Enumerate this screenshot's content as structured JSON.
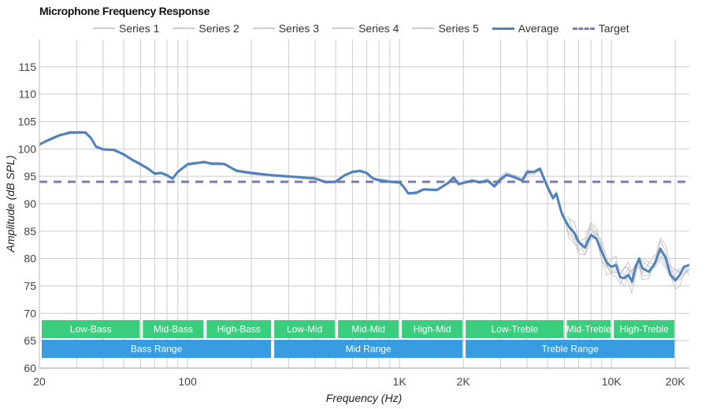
{
  "chart_data": {
    "type": "line",
    "title": "Microphone Frequency Response",
    "xlabel": "Frequency (Hz)",
    "ylabel": "Amplitude (dB SPL)",
    "xscale": "log",
    "xlim": [
      20,
      23300
    ],
    "ylim": [
      60,
      120
    ],
    "grid": true,
    "legend_position": "top",
    "x_ticks": [
      {
        "value": 20,
        "label": "20"
      },
      {
        "value": 100,
        "label": "100"
      },
      {
        "value": 1000,
        "label": "1K"
      },
      {
        "value": 2000,
        "label": "2K"
      },
      {
        "value": 10000,
        "label": "10K"
      },
      {
        "value": 20000,
        "label": "20K"
      }
    ],
    "y_ticks": [
      60,
      65,
      70,
      75,
      80,
      85,
      90,
      95,
      100,
      105,
      110,
      115
    ],
    "colors": {
      "series": "#c8c8c8",
      "average": "#4f81bd",
      "target": "#7b7ab3",
      "band_top": "#33cc7a",
      "band_bottom": "#3399e0",
      "grid": "#cccccc"
    },
    "series": [
      {
        "name": "Series 1"
      },
      {
        "name": "Series 2"
      },
      {
        "name": "Series 3"
      },
      {
        "name": "Series 4"
      },
      {
        "name": "Series 5"
      },
      {
        "name": "Average",
        "x": [
          20,
          22,
          25,
          28,
          31,
          33,
          35,
          37,
          40,
          45,
          50,
          55,
          60,
          65,
          70,
          75,
          80,
          85,
          90,
          100,
          110,
          120,
          130,
          140,
          150,
          170,
          200,
          250,
          300,
          350,
          400,
          450,
          500,
          550,
          600,
          650,
          700,
          750,
          800,
          900,
          1000,
          1050,
          1100,
          1200,
          1300,
          1500,
          1700,
          1800,
          1900,
          2000,
          2200,
          2400,
          2600,
          2800,
          3000,
          3200,
          3500,
          3800,
          4000,
          4300,
          4600,
          5000,
          5300,
          5500,
          5800,
          6000,
          6300,
          6700,
          7000,
          7500,
          8000,
          8500,
          9000,
          9500,
          10000,
          10500,
          11000,
          11500,
          12000,
          12500,
          13000,
          13500,
          14000,
          15000,
          16000,
          17000,
          18000,
          19000,
          20000,
          21000,
          22000,
          23300
        ],
        "y": [
          100.8,
          101.6,
          102.5,
          103.0,
          103.0,
          103.0,
          102.0,
          100.4,
          99.9,
          99.8,
          99.0,
          98.0,
          97.2,
          96.4,
          95.5,
          95.6,
          95.2,
          94.6,
          95.8,
          97.2,
          97.4,
          97.6,
          97.3,
          97.3,
          97.2,
          96.0,
          95.6,
          95.2,
          95.0,
          94.8,
          94.6,
          93.9,
          94.0,
          95.2,
          95.8,
          96.0,
          95.6,
          94.6,
          94.3,
          94.0,
          93.9,
          93.0,
          91.9,
          92.0,
          92.6,
          92.5,
          93.8,
          94.8,
          93.6,
          93.8,
          94.2,
          93.9,
          94.2,
          93.2,
          94.5,
          95.3,
          94.8,
          94.2,
          95.8,
          95.8,
          96.4,
          93.0,
          91.0,
          91.8,
          88.5,
          87.2,
          85.8,
          84.6,
          83.0,
          82.0,
          84.3,
          83.6,
          81.2,
          79.2,
          78.5,
          78.8,
          76.6,
          76.4,
          77.0,
          75.8,
          78.4,
          80.0,
          78.2,
          77.6,
          79.0,
          81.8,
          80.2,
          77.0,
          76.0,
          77.0,
          78.5,
          78.8
        ]
      },
      {
        "name": "Target",
        "x": [
          20,
          23300
        ],
        "y": [
          94,
          94
        ]
      }
    ],
    "bands_top": [
      {
        "label": "Low-Bass",
        "from": 20,
        "to": 60
      },
      {
        "label": "Mid-Bass",
        "from": 60,
        "to": 120
      },
      {
        "label": "High-Bass",
        "from": 120,
        "to": 250
      },
      {
        "label": "Low-Mid",
        "from": 250,
        "to": 500
      },
      {
        "label": "Mid-Mid",
        "from": 500,
        "to": 1000
      },
      {
        "label": "High-Mid",
        "from": 1000,
        "to": 2000
      },
      {
        "label": "Low-Treble",
        "from": 2000,
        "to": 6000
      },
      {
        "label": "Mid-Treble",
        "from": 6000,
        "to": 10000
      },
      {
        "label": "High-Treble",
        "from": 10000,
        "to": 20000
      }
    ],
    "bands_bottom": [
      {
        "label": "Bass Range",
        "from": 20,
        "to": 250
      },
      {
        "label": "Mid Range",
        "from": 250,
        "to": 2000
      },
      {
        "label": "Treble Range",
        "from": 2000,
        "to": 20000
      }
    ]
  }
}
